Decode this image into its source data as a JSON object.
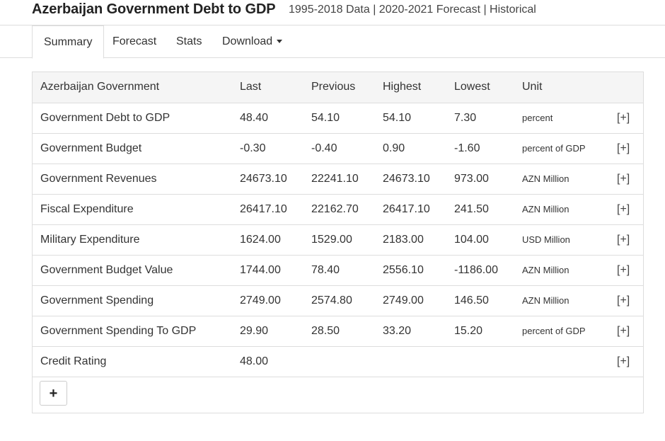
{
  "header": {
    "title": "Azerbaijan Government Debt to GDP",
    "subtitle": "1995-2018 Data | 2020-2021 Forecast | Historical"
  },
  "tabs": [
    {
      "label": "Summary",
      "active": true
    },
    {
      "label": "Forecast",
      "active": false
    },
    {
      "label": "Stats",
      "active": false
    },
    {
      "label": "Download",
      "active": false
    }
  ],
  "table": {
    "headers": [
      "Azerbaijan Government",
      "Last",
      "Previous",
      "Highest",
      "Lowest",
      "Unit"
    ],
    "rows": [
      {
        "name": "Government Debt to GDP",
        "last": "48.40",
        "previous": "54.10",
        "highest": "54.10",
        "lowest": "7.30",
        "unit": "percent",
        "expand": "[+]"
      },
      {
        "name": "Government Budget",
        "last": "-0.30",
        "previous": "-0.40",
        "highest": "0.90",
        "lowest": "-1.60",
        "unit": "percent of GDP",
        "expand": "[+]"
      },
      {
        "name": "Government Revenues",
        "last": "24673.10",
        "previous": "22241.10",
        "highest": "24673.10",
        "lowest": "973.00",
        "unit": "AZN Million",
        "expand": "[+]"
      },
      {
        "name": "Fiscal Expenditure",
        "last": "26417.10",
        "previous": "22162.70",
        "highest": "26417.10",
        "lowest": "241.50",
        "unit": "AZN Million",
        "expand": "[+]"
      },
      {
        "name": "Military Expenditure",
        "last": "1624.00",
        "previous": "1529.00",
        "highest": "2183.00",
        "lowest": "104.00",
        "unit": "USD Million",
        "expand": "[+]"
      },
      {
        "name": "Government Budget Value",
        "last": "1744.00",
        "previous": "78.40",
        "highest": "2556.10",
        "lowest": "-1186.00",
        "unit": "AZN Million",
        "expand": "[+]"
      },
      {
        "name": "Government Spending",
        "last": "2749.00",
        "previous": "2574.80",
        "highest": "2749.00",
        "lowest": "146.50",
        "unit": "AZN Million",
        "expand": "[+]"
      },
      {
        "name": "Government Spending To GDP",
        "last": "29.90",
        "previous": "28.50",
        "highest": "33.20",
        "lowest": "15.20",
        "unit": "percent of GDP",
        "expand": "[+]"
      },
      {
        "name": "Credit Rating",
        "last": "48.00",
        "previous": "",
        "highest": "",
        "lowest": "",
        "unit": "",
        "expand": "[+]"
      }
    ],
    "add_button_label": "+"
  }
}
